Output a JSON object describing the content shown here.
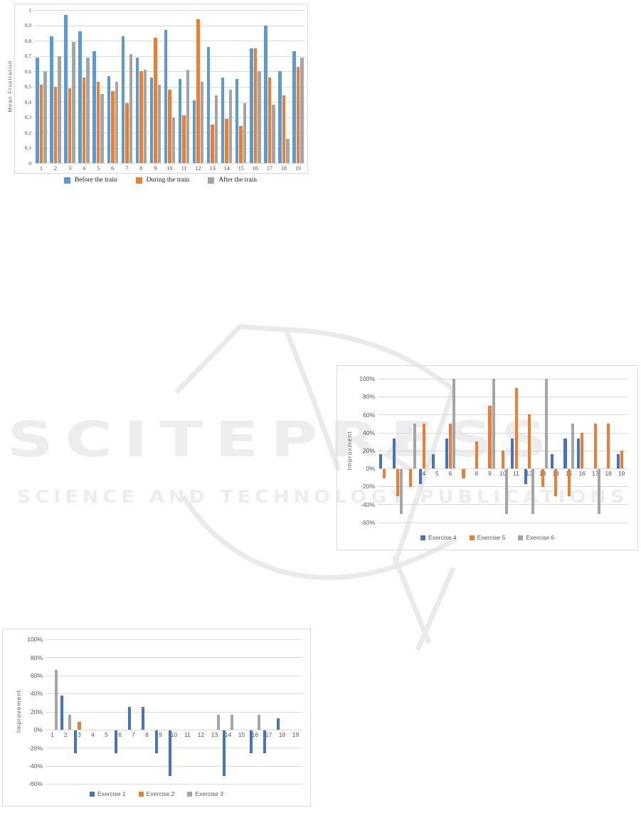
{
  "watermark": {
    "brand": "SCITEPRESS",
    "tagline": "SCIENCE AND TECHNOLOGY PUBLICATIONS",
    "color": "#ededf0"
  },
  "colors": {
    "blue_light": "#5B9BD5",
    "blue": "#4472C4",
    "orange": "#ED7D31",
    "gray": "#A5A5A5",
    "gridline": "#DADADA",
    "axis_text": "#595959"
  },
  "chart_data": [
    {
      "type": "bar",
      "title": "",
      "xlabel": "",
      "ylabel": "Mean Frustration",
      "ylim": [
        0,
        1
      ],
      "grid": true,
      "legend_position": "bottom-outside",
      "categories": [
        "1",
        "2",
        "3",
        "4",
        "5",
        "6",
        "7",
        "8",
        "9",
        "10",
        "11",
        "12",
        "13",
        "14",
        "15",
        "16",
        "17",
        "18",
        "19"
      ],
      "yticks": [
        {
          "v": 0,
          "label": "0"
        },
        {
          "v": 0.1,
          "label": "0,1"
        },
        {
          "v": 0.2,
          "label": "0,2"
        },
        {
          "v": 0.3,
          "label": "0,3"
        },
        {
          "v": 0.4,
          "label": "0,4"
        },
        {
          "v": 0.5,
          "label": "0,5"
        },
        {
          "v": 0.6,
          "label": "0,6"
        },
        {
          "v": 0.7,
          "label": "0,7"
        },
        {
          "v": 0.8,
          "label": "0,8"
        },
        {
          "v": 0.9,
          "label": "0,9"
        },
        {
          "v": 1,
          "label": "1"
        }
      ],
      "series": [
        {
          "name": "Before the train",
          "color": "#5B9BD5",
          "values": [
            0.69,
            0.83,
            0.97,
            0.86,
            0.73,
            0.57,
            0.83,
            0.69,
            0.56,
            0.87,
            0.55,
            0.41,
            0.76,
            0.56,
            0.55,
            0.75,
            0.9,
            0.6,
            0.73
          ]
        },
        {
          "name": "During the train",
          "color": "#ED7D31",
          "values": [
            0.51,
            0.5,
            0.49,
            0.56,
            0.53,
            0.47,
            0.39,
            0.6,
            0.82,
            0.48,
            0.31,
            0.94,
            0.25,
            0.29,
            0.24,
            0.75,
            0.56,
            0.44,
            0.63
          ]
        },
        {
          "name": "After the train",
          "color": "#A5A5A5",
          "values": [
            0.6,
            0.7,
            0.79,
            0.69,
            0.45,
            0.53,
            0.71,
            0.61,
            0.51,
            0.3,
            0.61,
            0.53,
            0.44,
            0.48,
            0.39,
            0.6,
            0.38,
            0.16,
            0.69
          ]
        }
      ]
    },
    {
      "type": "bar",
      "title": "",
      "xlabel": "",
      "ylabel": "Improvment",
      "ylim": [
        -0.6,
        1.0
      ],
      "grid": true,
      "legend_position": "bottom-inside",
      "categories": [
        "1",
        "2",
        "3",
        "4",
        "5",
        "6",
        "7",
        "8",
        "9",
        "10",
        "11",
        "12",
        "13",
        "14",
        "15",
        "16",
        "17",
        "18",
        "19"
      ],
      "yticks": [
        {
          "v": 1.0,
          "label": "100%"
        },
        {
          "v": 0.8,
          "label": "80%"
        },
        {
          "v": 0.6,
          "label": "60%"
        },
        {
          "v": 0.4,
          "label": "40%"
        },
        {
          "v": 0.2,
          "label": "20%"
        },
        {
          "v": 0,
          "label": "0%"
        },
        {
          "v": -0.2,
          "label": "-20%"
        },
        {
          "v": -0.4,
          "label": "-40%"
        },
        {
          "v": -0.6,
          "label": "-60%"
        }
      ],
      "series": [
        {
          "name": "Exercise 4",
          "color": "#4472C4",
          "values": [
            0.16,
            0.33,
            0,
            -0.17,
            0.16,
            0.33,
            0,
            0,
            0,
            0,
            0.33,
            -0.17,
            0,
            0.16,
            0.33,
            0.33,
            0,
            0,
            0.16
          ]
        },
        {
          "name": "Exercise 5",
          "color": "#ED7D31",
          "values": [
            -0.1,
            -0.3,
            -0.2,
            0.5,
            0,
            0.5,
            -0.1,
            0.3,
            0.7,
            0.2,
            0.9,
            0.6,
            -0.2,
            -0.3,
            -0.3,
            0.4,
            0.5,
            0.5,
            0.2
          ]
        },
        {
          "name": "Exercise 6",
          "color": "#A5A5A5",
          "values": [
            0,
            -0.5,
            0.5,
            0,
            0,
            1.0,
            0,
            0,
            1.0,
            -0.5,
            0,
            -0.5,
            1.0,
            0,
            0.5,
            0,
            -0.5,
            0,
            0
          ]
        }
      ]
    },
    {
      "type": "bar",
      "title": "",
      "xlabel": "",
      "ylabel": "Improvement",
      "ylim": [
        -0.6,
        1.0
      ],
      "grid": true,
      "legend_position": "bottom-inside",
      "categories": [
        "1",
        "2",
        "3",
        "4",
        "5",
        "6",
        "7",
        "8",
        "9",
        "10",
        "11",
        "12",
        "13",
        "14",
        "15",
        "16",
        "17",
        "18",
        "19"
      ],
      "yticks": [
        {
          "v": 1.0,
          "label": "100%"
        },
        {
          "v": 0.8,
          "label": "80%"
        },
        {
          "v": 0.6,
          "label": "60%"
        },
        {
          "v": 0.4,
          "label": "40%"
        },
        {
          "v": 0.2,
          "label": "20%"
        },
        {
          "v": 0,
          "label": "0%"
        },
        {
          "v": -0.2,
          "label": "-20%"
        },
        {
          "v": -0.4,
          "label": "-40%"
        },
        {
          "v": -0.6,
          "label": "-60%"
        }
      ],
      "series": [
        {
          "name": "Exercise 1",
          "color": "#4472C4",
          "values": [
            0,
            0.375,
            -0.25,
            0,
            0,
            -0.25,
            0.25,
            0.25,
            -0.25,
            -0.5,
            0,
            0,
            0,
            -0.5,
            0,
            -0.25,
            -0.25,
            0.125,
            0
          ]
        },
        {
          "name": "Exercise 2",
          "color": "#ED7D31",
          "values": [
            0,
            0,
            0.09,
            0,
            0,
            0,
            0,
            0,
            0,
            0,
            0,
            0,
            0,
            0,
            0,
            0,
            0,
            0,
            0
          ]
        },
        {
          "name": "Exercise 3",
          "color": "#A5A5A5",
          "values": [
            0.66,
            0.165,
            0,
            0,
            0,
            0,
            0,
            0,
            0,
            0,
            0,
            0,
            0.165,
            0.165,
            0,
            0.165,
            0,
            0,
            0
          ]
        }
      ]
    }
  ]
}
